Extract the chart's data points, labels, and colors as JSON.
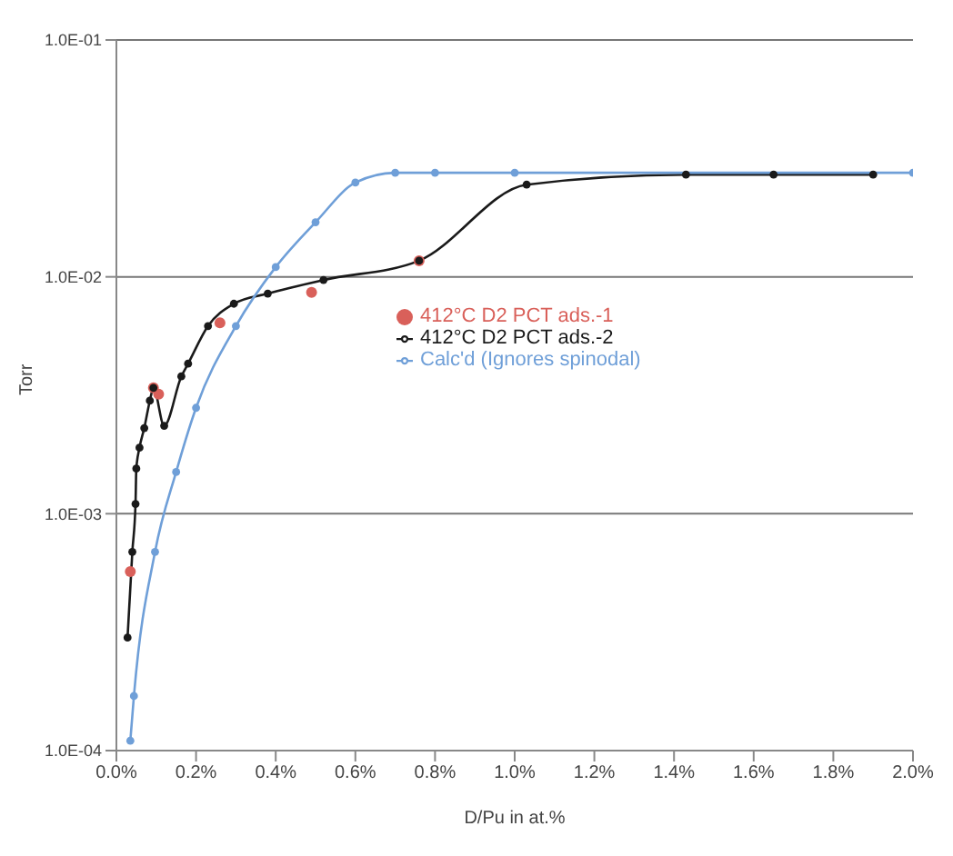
{
  "chart_data": {
    "type": "line",
    "xlabel": "D/Pu in at.%",
    "ylabel": "Torr",
    "log": "y",
    "grid": "y",
    "legend": "center",
    "marker": "circle",
    "xlim": [
      0,
      2.0
    ],
    "xticks": [
      {
        "value": 0,
        "label": "0.0%"
      },
      {
        "value": 0.2,
        "label": "0.2%"
      },
      {
        "value": 0.4,
        "label": "0.4%"
      },
      {
        "value": 0.6,
        "label": "0.6%"
      },
      {
        "value": 0.8,
        "label": "0.8%"
      },
      {
        "value": 1.0,
        "label": "1.0%"
      },
      {
        "value": 1.2,
        "label": "1.2%"
      },
      {
        "value": 1.4,
        "label": "1.4%"
      },
      {
        "value": 1.6,
        "label": "1.6%"
      },
      {
        "value": 1.8,
        "label": "1.8%"
      },
      {
        "value": 2.0,
        "label": "2.0%"
      }
    ],
    "ylim": [
      0.0001,
      0.1
    ],
    "yticks": [
      {
        "value": 0.0001,
        "label": "1.0E-04"
      },
      {
        "value": 0.001,
        "label": "1.0E-03"
      },
      {
        "value": 0.01,
        "label": "1.0E-02"
      },
      {
        "value": 0.1,
        "label": "1.0E-01"
      }
    ],
    "series": [
      {
        "name": "412°C D2 PCT ads.-1",
        "type": "scatter",
        "color": "#d9605a",
        "x": [
          0.035,
          0.093,
          0.106,
          0.26,
          0.49,
          0.76
        ],
        "values": [
          0.00057,
          0.0034,
          0.0032,
          0.0064,
          0.0086,
          0.0117
        ]
      },
      {
        "name": "412°C D2 PCT ads.-2",
        "color": "#1a1a1a",
        "x": [
          0.028,
          0.04,
          0.048,
          0.05,
          0.058,
          0.07,
          0.084,
          0.093,
          0.12,
          0.163,
          0.18,
          0.23,
          0.295,
          0.38,
          0.52,
          0.76,
          1.03,
          1.43,
          1.65,
          1.9
        ],
        "values": [
          0.0003,
          0.00069,
          0.0011,
          0.00155,
          0.0019,
          0.0023,
          0.003,
          0.0034,
          0.00235,
          0.0038,
          0.0043,
          0.0062,
          0.0077,
          0.0085,
          0.0097,
          0.0117,
          0.0245,
          0.027,
          0.027,
          0.027
        ]
      },
      {
        "name": "Calc'd (Ignores spinodal)",
        "color": "#6f9fd8",
        "x": [
          0.035,
          0.044,
          0.097,
          0.15,
          0.2,
          0.3,
          0.4,
          0.5,
          0.6,
          0.7,
          0.8,
          1.0,
          2.0
        ],
        "values": [
          0.00011,
          0.00017,
          0.00069,
          0.0015,
          0.0028,
          0.0062,
          0.011,
          0.017,
          0.025,
          0.0275,
          0.0275,
          0.0275,
          0.0275
        ]
      }
    ]
  }
}
